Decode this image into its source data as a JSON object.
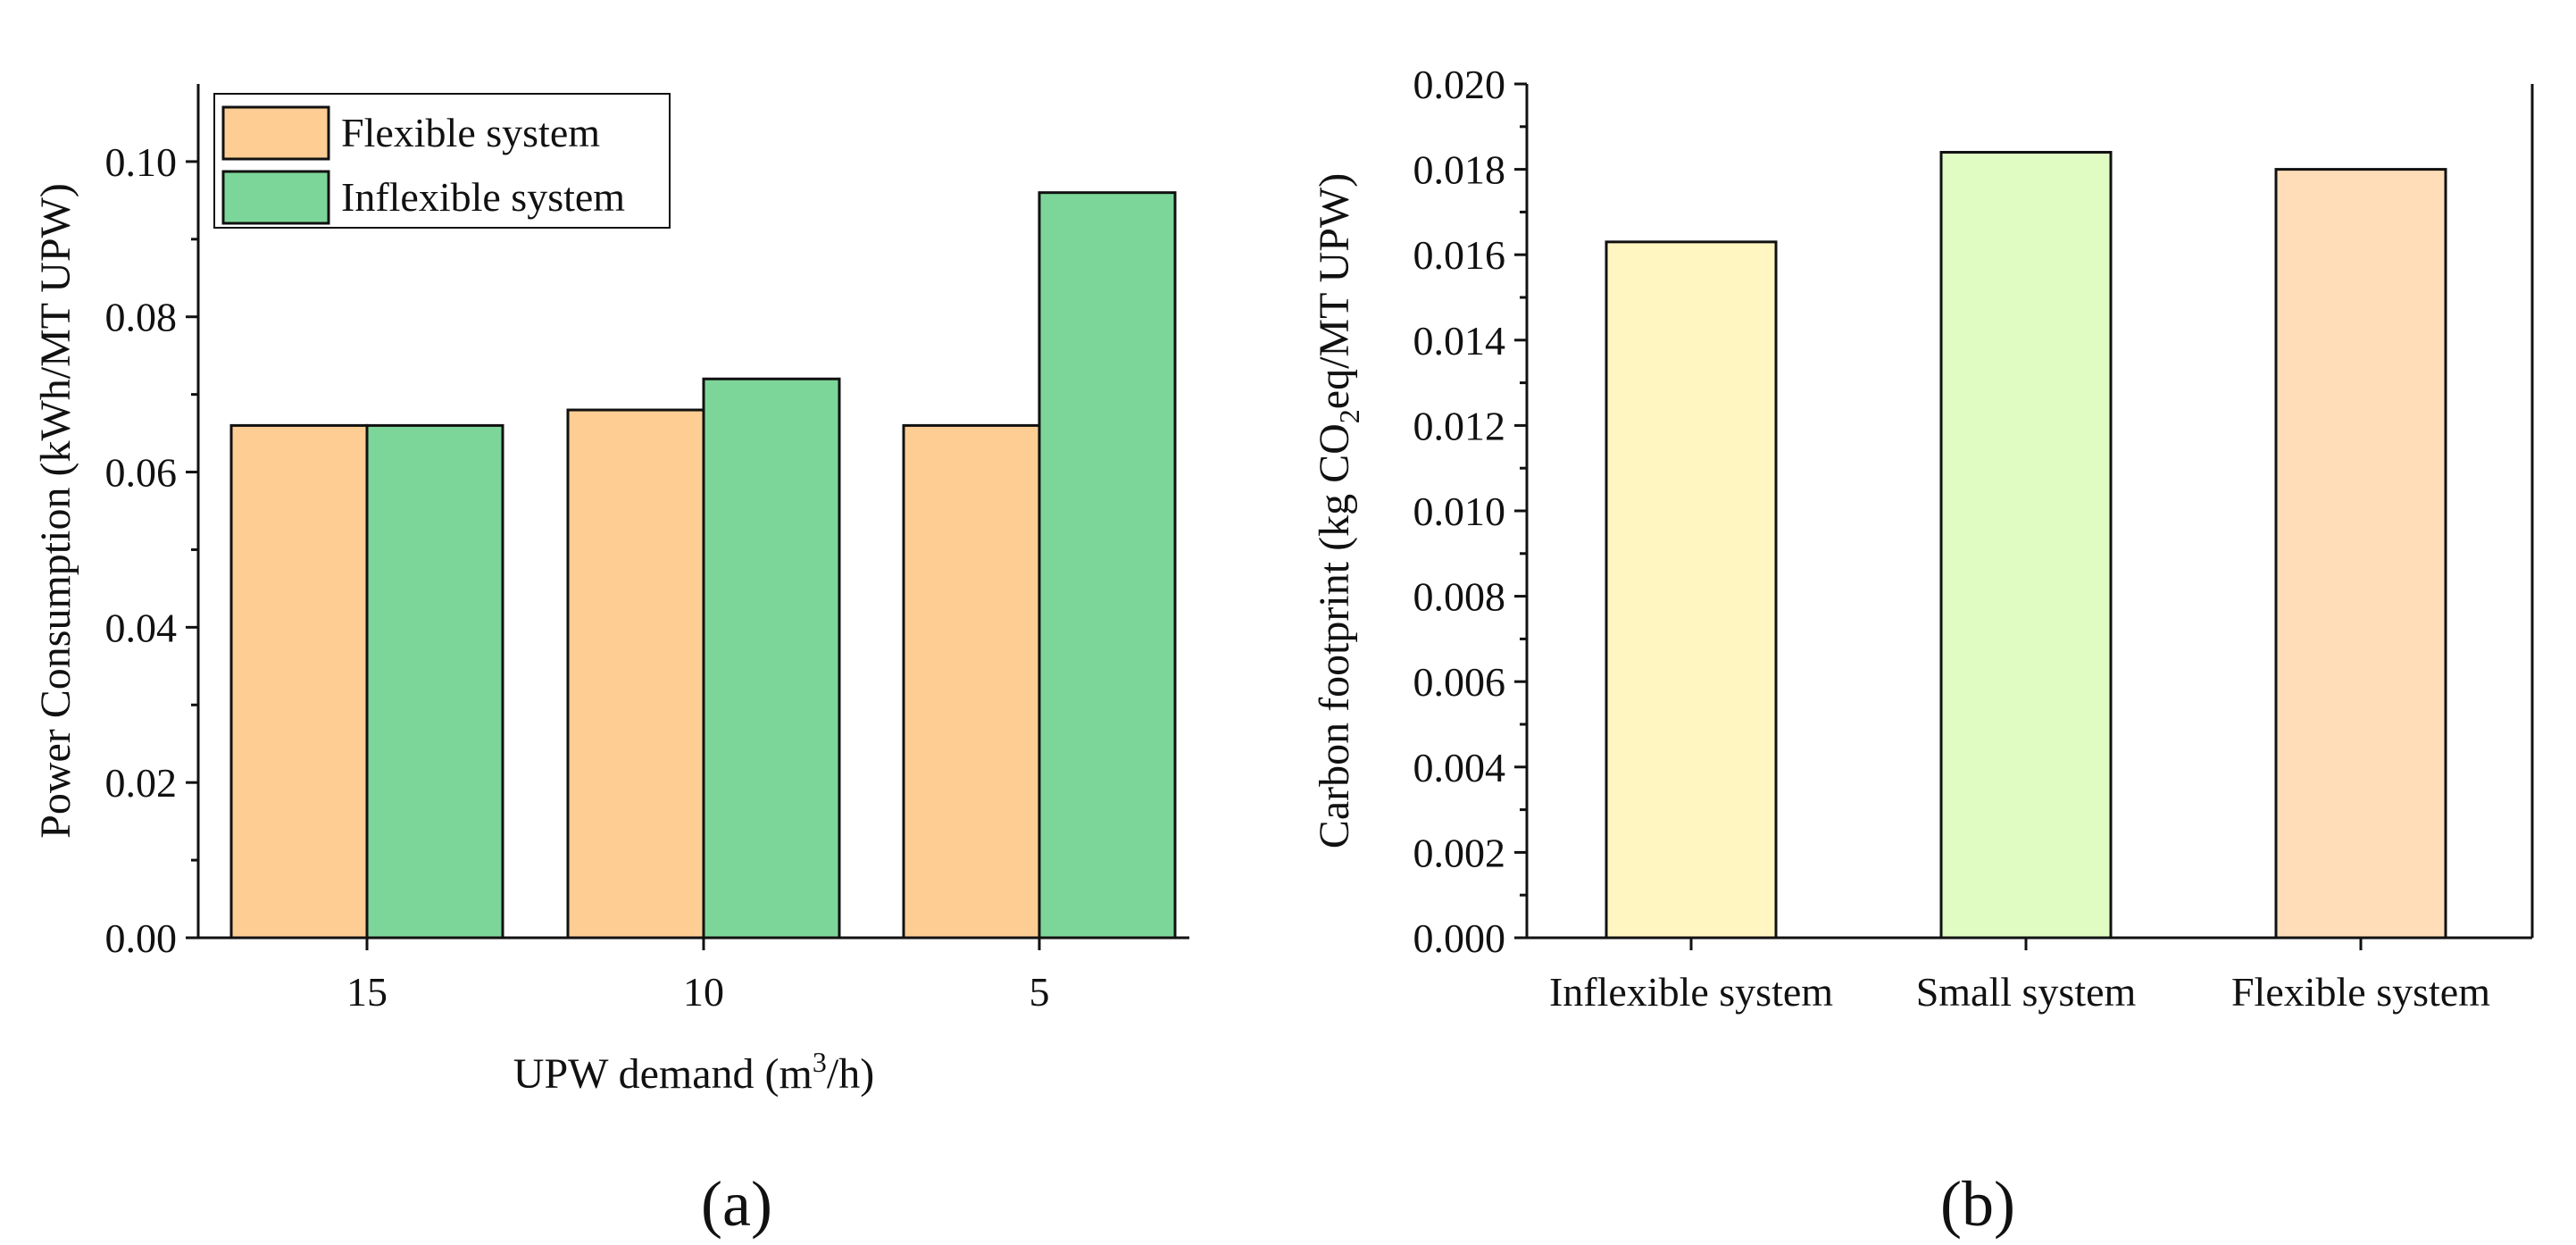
{
  "chart_data": [
    {
      "id": "a",
      "type": "bar",
      "panel_label": "(a)",
      "title": "",
      "xlabel": "UPW demand (m",
      "xlabel_sup": "3",
      "xlabel_suffix": "/h)",
      "ylabel": "Power Consumption (kWh/MT UPW)",
      "categories": [
        "15",
        "10",
        "5"
      ],
      "series": [
        {
          "name": "Flexible system",
          "color": "#FDCD94",
          "values": [
            0.066,
            0.068,
            0.066
          ]
        },
        {
          "name": "Inflexible system",
          "color": "#7DD699",
          "values": [
            0.066,
            0.072,
            0.096
          ]
        }
      ],
      "ylim": [
        0,
        0.11
      ],
      "yticks": [
        0,
        0.02,
        0.04,
        0.06,
        0.08,
        0.1
      ],
      "ytick_labels": [
        "0.00",
        "0.02",
        "0.04",
        "0.06",
        "0.08",
        "0.10"
      ],
      "legend_position": "top-left",
      "grid": false
    },
    {
      "id": "b",
      "type": "bar",
      "panel_label": "(b)",
      "title": "",
      "xlabel": "",
      "ylabel_prefix": "Carbon footprint (kg CO",
      "ylabel_sub": "2",
      "ylabel_suffix": "eq/MT UPW)",
      "categories": [
        "Inflexible system",
        "Small system",
        "Flexible system"
      ],
      "values": [
        0.0163,
        0.0184,
        0.018
      ],
      "colors": [
        "#FFF6C2",
        "#E0FCC2",
        "#FFDDB8"
      ],
      "ylim": [
        0,
        0.02
      ],
      "yticks": [
        0,
        0.002,
        0.004,
        0.006,
        0.008,
        0.01,
        0.012,
        0.014,
        0.016,
        0.018,
        0.02
      ],
      "ytick_labels": [
        "0.000",
        "0.002",
        "0.004",
        "0.006",
        "0.008",
        "0.010",
        "0.012",
        "0.014",
        "0.016",
        "0.018",
        "0.020"
      ],
      "grid": false
    }
  ]
}
